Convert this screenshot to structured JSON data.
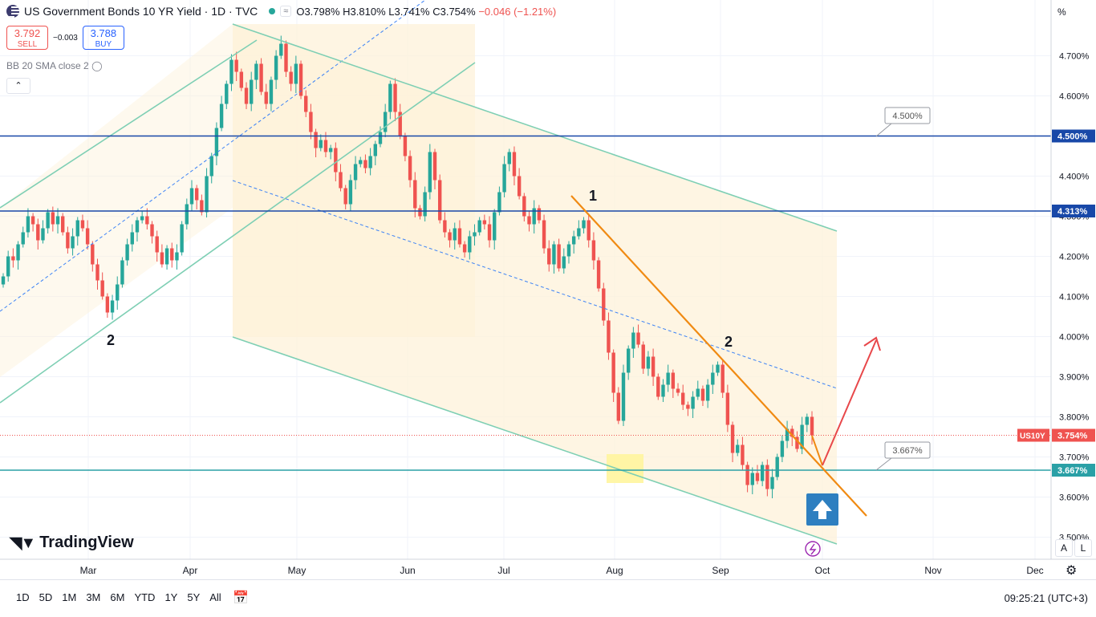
{
  "header": {
    "title": "US Government Bonds 10 YR Yield · 1D · TVC",
    "ohlc": {
      "open": "O3.798%",
      "high": "H3.810%",
      "low": "L3.741%",
      "close": "C3.754%",
      "change": "−0.046 (−1.21%)"
    }
  },
  "trade": {
    "sell_price": "3.792",
    "sell_label": "SELL",
    "spread": "−0.003",
    "buy_price": "3.788",
    "buy_label": "BUY"
  },
  "indicator": "BB 20 SMA close 2",
  "price_axis_unit": "%",
  "scale_buttons": {
    "auto": "A",
    "log": "L"
  },
  "logo": "TradingView",
  "bottom_bar": {
    "ranges": [
      "1D",
      "5D",
      "1M",
      "3M",
      "6M",
      "YTD",
      "1Y",
      "5Y",
      "All"
    ],
    "clock": "09:25:21 (UTC+3)"
  },
  "colors": {
    "up": "#26a69a",
    "down": "#ef5350",
    "channel": "#7ecfb4",
    "resistance": "#1848a8",
    "support": "#2aa0a6",
    "trendline": "#f08a12",
    "arrow": "#e8474a"
  },
  "chart_data": {
    "type": "candlestick",
    "symbol": "US10Y",
    "last_price": 3.754,
    "y_axis": {
      "ticks": [
        "4.700%",
        "4.600%",
        "4.500%",
        "4.400%",
        "4.300%",
        "4.200%",
        "4.100%",
        "4.000%",
        "3.900%",
        "3.800%",
        "3.700%",
        "3.600%",
        "3.500%"
      ],
      "range": [
        3.46,
        4.76
      ]
    },
    "x_axis": {
      "ticks": [
        "Mar",
        "Apr",
        "May",
        "Jun",
        "Jul",
        "Aug",
        "Sep",
        "Oct",
        "Nov",
        "Dec"
      ]
    },
    "levels": [
      {
        "label": "4.500%",
        "value": 4.5
      },
      {
        "label": "4.313%",
        "value": 4.313
      },
      {
        "label": "3.667%",
        "value": 3.667
      }
    ],
    "callouts": [
      "4.500%",
      "3.667%"
    ],
    "annotations": [
      "1",
      "2",
      "2"
    ],
    "close_series": [
      4.15,
      4.2,
      4.19,
      4.23,
      4.26,
      4.3,
      4.28,
      4.24,
      4.27,
      4.31,
      4.28,
      4.3,
      4.26,
      4.22,
      4.25,
      4.29,
      4.27,
      4.23,
      4.18,
      4.14,
      4.1,
      4.06,
      4.09,
      4.13,
      4.19,
      4.23,
      4.26,
      4.29,
      4.3,
      4.28,
      4.25,
      4.21,
      4.18,
      4.22,
      4.19,
      4.21,
      4.28,
      4.33,
      4.37,
      4.34,
      4.31,
      4.4,
      4.45,
      4.52,
      4.58,
      4.63,
      4.69,
      4.66,
      4.62,
      4.58,
      4.64,
      4.68,
      4.61,
      4.58,
      4.64,
      4.7,
      4.73,
      4.66,
      4.63,
      4.68,
      4.6,
      4.56,
      4.51,
      4.47,
      4.49,
      4.46,
      4.47,
      4.41,
      4.37,
      4.33,
      4.39,
      4.43,
      4.44,
      4.42,
      4.45,
      4.48,
      4.51,
      4.56,
      4.63,
      4.56,
      4.5,
      4.45,
      4.39,
      4.32,
      4.3,
      4.36,
      4.46,
      4.39,
      4.29,
      4.26,
      4.24,
      4.27,
      4.23,
      4.21,
      4.25,
      4.26,
      4.29,
      4.28,
      4.24,
      4.31,
      4.36,
      4.43,
      4.46,
      4.4,
      4.35,
      4.3,
      4.28,
      4.32,
      4.29,
      4.22,
      4.18,
      4.23,
      4.17,
      4.2,
      4.23,
      4.25,
      4.27,
      4.29,
      4.24,
      4.19,
      4.12,
      4.04,
      3.96,
      3.86,
      3.79,
      3.91,
      3.97,
      4.01,
      3.98,
      3.92,
      3.95,
      3.9,
      3.85,
      3.88,
      3.91,
      3.87,
      3.86,
      3.83,
      3.82,
      3.85,
      3.87,
      3.84,
      3.88,
      3.91,
      3.93,
      3.86,
      3.78,
      3.71,
      3.73,
      3.68,
      3.63,
      3.66,
      3.64,
      3.68,
      3.62,
      3.65,
      3.7,
      3.74,
      3.77,
      3.75,
      3.72,
      3.78,
      3.8,
      3.754
    ]
  }
}
